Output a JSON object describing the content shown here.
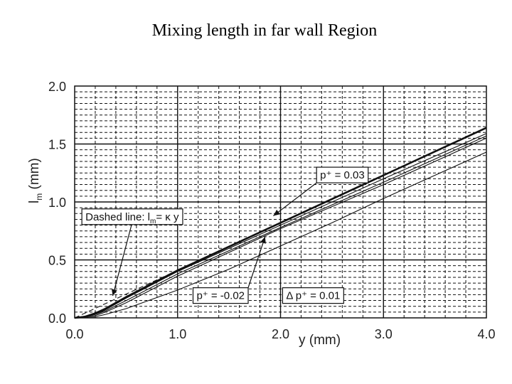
{
  "slide": {
    "title": "Mixing length in far wall Region"
  },
  "chart_data": {
    "type": "line",
    "xlabel": "y (mm)",
    "ylabel_main": "l",
    "ylabel_sub": "m",
    "ylabel_unit": " (mm)",
    "xlim": [
      0,
      4
    ],
    "ylim": [
      0,
      2
    ],
    "grid": true,
    "x_ticks": [
      "0.0",
      "1.0",
      "2.0",
      "3.0",
      "4.0"
    ],
    "y_ticks": [
      "0.0",
      "0.5",
      "1.0",
      "1.5",
      "2.0"
    ],
    "series": [
      {
        "style": "dashed",
        "x": [
          0,
          4.0
        ],
        "y": [
          0,
          1.64
        ]
      },
      {
        "style": "bold",
        "x": [
          0,
          0.1,
          0.2,
          0.3,
          0.5,
          1.0,
          2.0,
          3.0,
          4.0
        ],
        "y": [
          0,
          0.01,
          0.04,
          0.08,
          0.18,
          0.41,
          0.82,
          1.23,
          1.64
        ]
      },
      {
        "style": "thin",
        "x": [
          0,
          0.1,
          0.2,
          0.3,
          0.5,
          1.0,
          2.0,
          3.0,
          4.0
        ],
        "y": [
          0,
          0.01,
          0.03,
          0.07,
          0.17,
          0.4,
          0.8,
          1.2,
          1.59
        ]
      },
      {
        "style": "thin",
        "x": [
          0,
          0.2,
          0.3,
          0.5,
          1.0,
          2.0,
          3.0,
          4.0
        ],
        "y": [
          0,
          0.03,
          0.06,
          0.15,
          0.38,
          0.78,
          1.17,
          1.57
        ]
      },
      {
        "style": "thin",
        "x": [
          0,
          0.2,
          0.3,
          0.5,
          1.0,
          2.0,
          3.0,
          4.0
        ],
        "y": [
          0,
          0.02,
          0.05,
          0.13,
          0.36,
          0.77,
          1.15,
          1.55
        ]
      },
      {
        "style": "thin",
        "x": [
          0,
          0.2,
          0.3,
          0.5,
          1.0,
          1.5,
          2.0,
          2.5,
          3.0,
          3.5,
          4.0
        ],
        "y": [
          0,
          0.01,
          0.03,
          0.08,
          0.24,
          0.42,
          0.62,
          0.82,
          1.03,
          1.23,
          1.43
        ]
      }
    ],
    "annotations": [
      {
        "label": "p⁺ = 0.03",
        "box_x": 2.35,
        "box_y": 1.3,
        "arrow_to": [
          1.93,
          0.88
        ]
      },
      {
        "label": "Dashed line: l",
        "label_sub": "m",
        "label_tail": "= κ y",
        "box_x": 0.07,
        "box_y": 0.94,
        "arrow_to": [
          0.37,
          0.19
        ]
      },
      {
        "label": "p⁺ = -0.02",
        "box_x": 1.15,
        "box_y": 0.26,
        "arrow_to": [
          1.85,
          0.7
        ]
      },
      {
        "label": "Δ p⁺ = 0.01",
        "box_x": 2.02,
        "box_y": 0.26,
        "arrow_to": null
      }
    ]
  }
}
